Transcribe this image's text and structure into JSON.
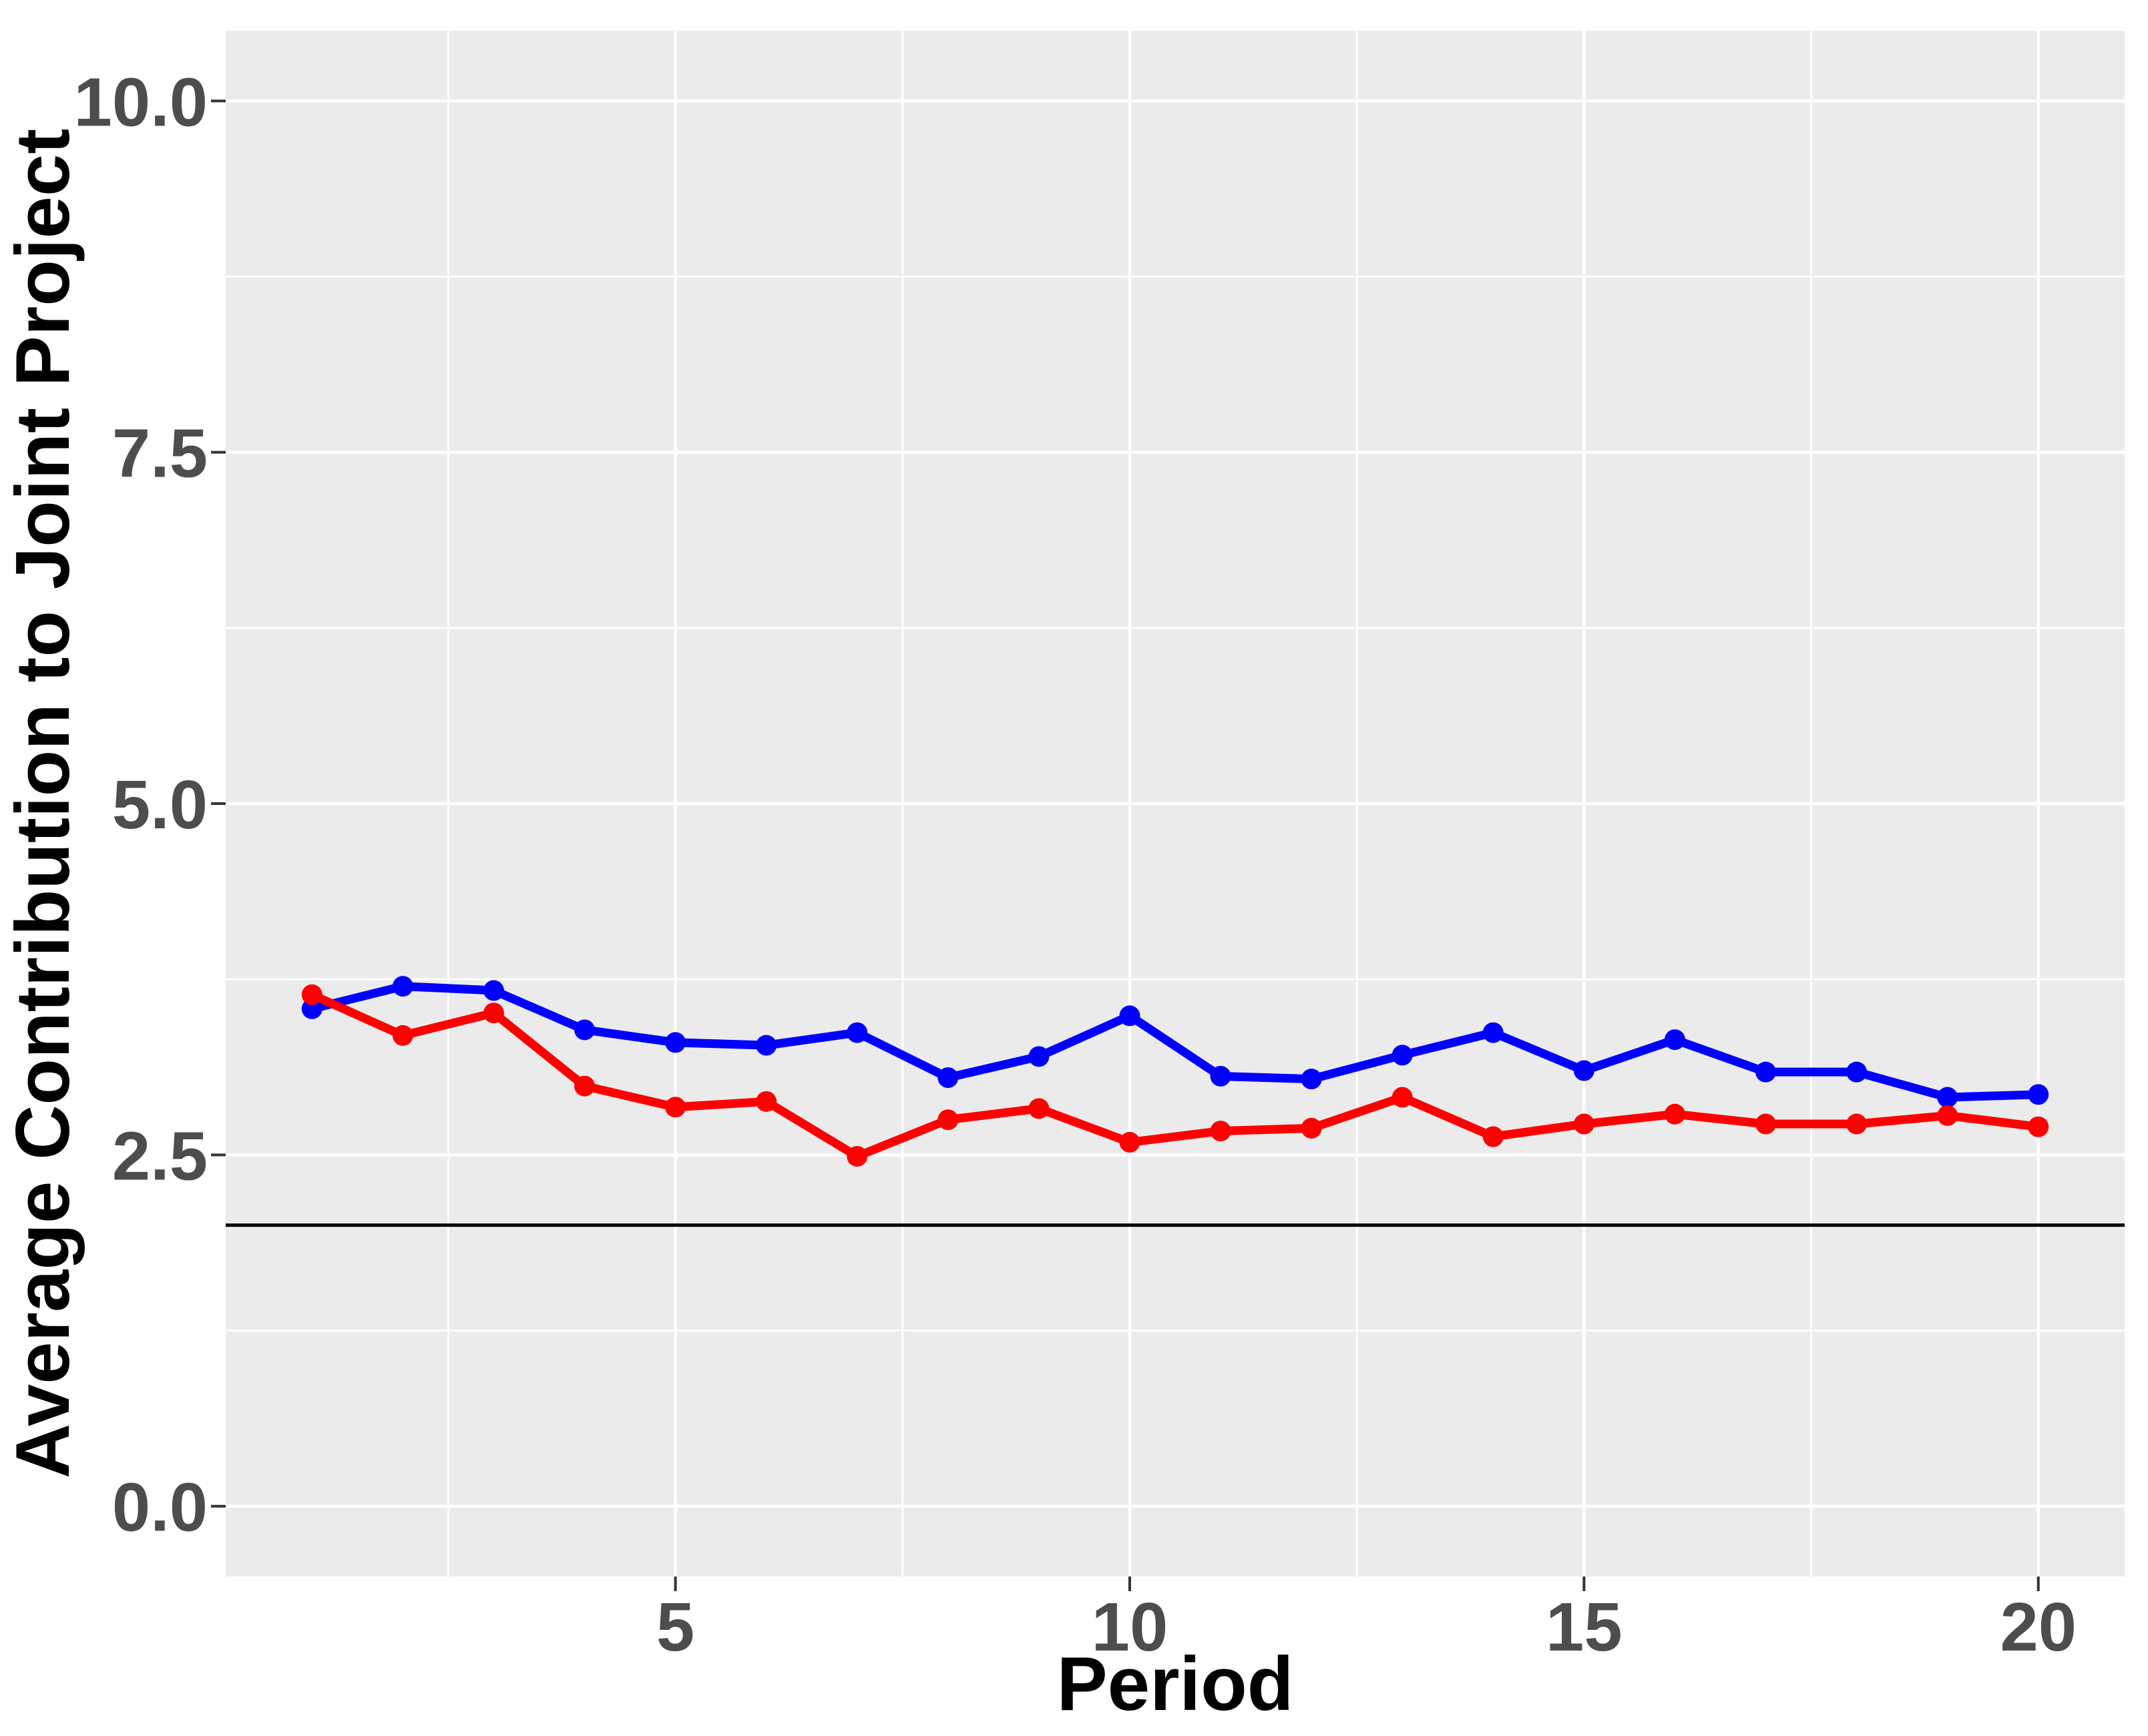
{
  "chart_data": {
    "type": "line",
    "title": "",
    "xlabel": "Period",
    "ylabel": "Average Contribution to Joint Project",
    "legend": "none",
    "x": [
      1,
      2,
      3,
      4,
      5,
      6,
      7,
      8,
      9,
      10,
      11,
      12,
      13,
      14,
      15,
      16,
      17,
      18,
      19,
      20
    ],
    "series": [
      {
        "name": "series-blue",
        "color": "#0000FF",
        "values": [
          3.54,
          3.7,
          3.67,
          3.39,
          3.3,
          3.28,
          3.37,
          3.05,
          3.2,
          3.49,
          3.06,
          3.04,
          3.21,
          3.37,
          3.1,
          3.32,
          3.09,
          3.09,
          2.91,
          2.93
        ]
      },
      {
        "name": "series-red",
        "color": "#FF0000",
        "values": [
          3.64,
          3.35,
          3.51,
          2.99,
          2.84,
          2.88,
          2.49,
          2.75,
          2.83,
          2.59,
          2.67,
          2.69,
          2.91,
          2.63,
          2.72,
          2.79,
          2.72,
          2.72,
          2.78,
          2.7
        ]
      }
    ],
    "reference_line": {
      "y": 2.0,
      "color": "#000000"
    },
    "xlim": [
      0.05,
      20.95
    ],
    "ylim": [
      -0.5,
      10.5
    ],
    "x_axis": {
      "ticks": [
        5,
        10,
        15,
        20
      ],
      "tick_labels": [
        "5",
        "10",
        "15",
        "20"
      ],
      "minor_gridlines": [
        2.5,
        7.5,
        12.5,
        17.5
      ]
    },
    "y_axis": {
      "ticks": [
        0,
        2.5,
        5,
        7.5,
        10
      ],
      "tick_labels": [
        "0.0",
        "2.5",
        "5.0",
        "7.5",
        "10.0"
      ],
      "minor_gridlines": [
        1.25,
        3.75,
        6.25,
        8.75
      ]
    },
    "grid": "on",
    "colors": {
      "panel_background": "#EBEBEB",
      "gridline": "#FFFFFF",
      "tick_mark": "#333333",
      "tick_label": "#4d4d4d",
      "axis_title": "#000000"
    }
  }
}
